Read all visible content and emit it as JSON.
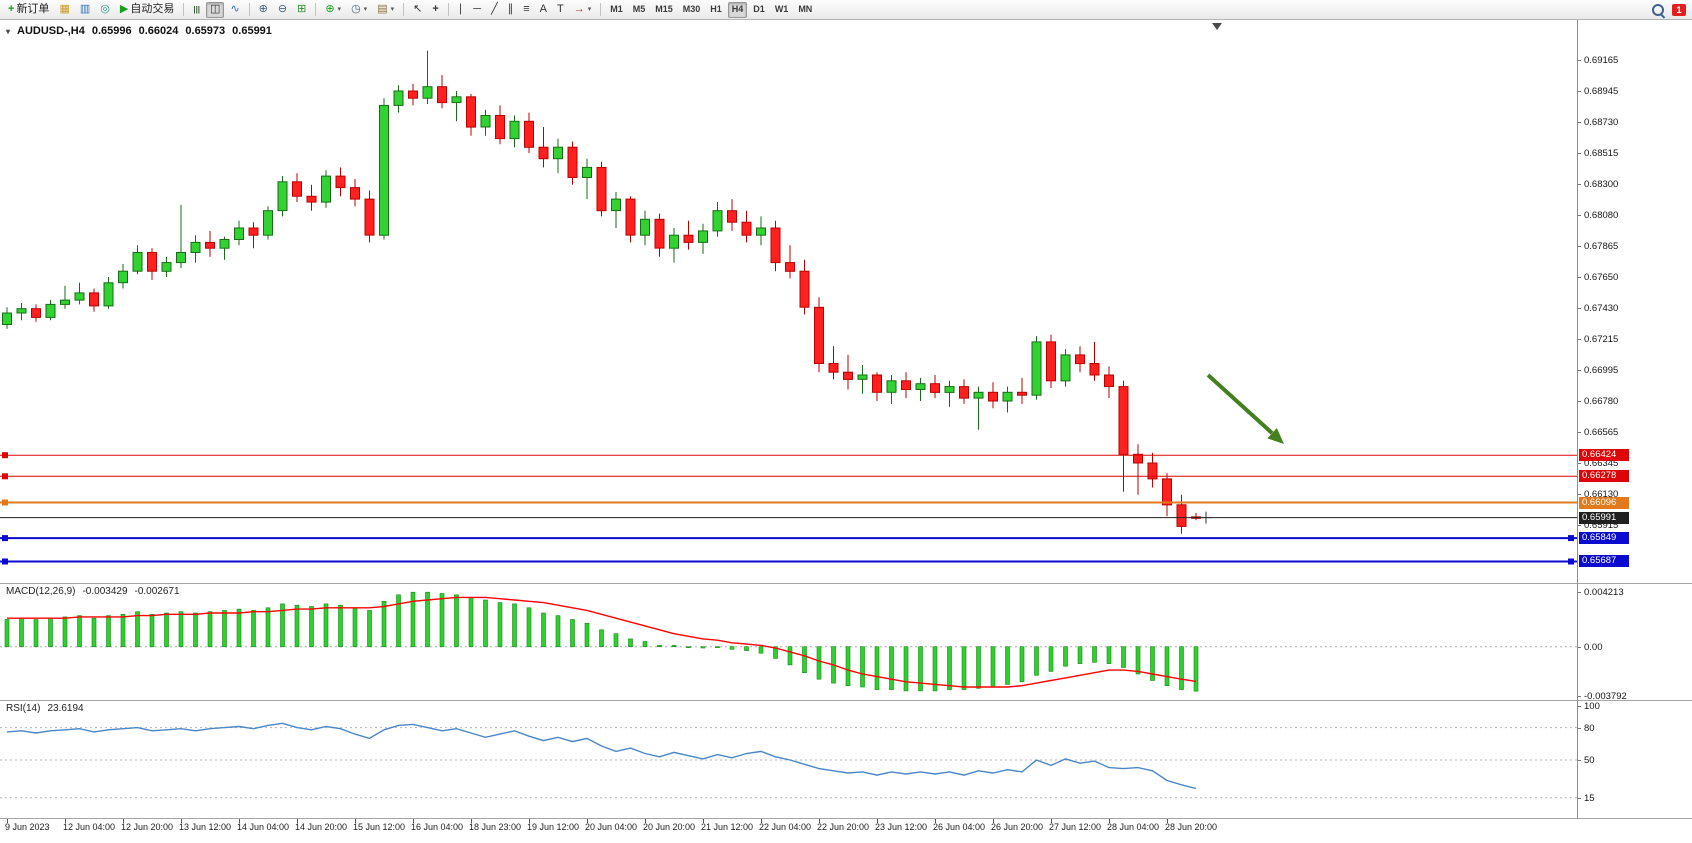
{
  "toolbar": {
    "notification_count": "1",
    "groups": [
      {
        "items": [
          {
            "name": "new-order-button",
            "icon": "new-order-icon",
            "glyph": "+",
            "glyph_color": "#17a017",
            "bold": true,
            "label": "新订单"
          },
          {
            "name": "market-watch-button",
            "icon": "market-watch-icon",
            "glyph": "▦",
            "glyph_color": "#c89a1e"
          },
          {
            "name": "data-window-button",
            "icon": "data-window-icon",
            "glyph": "▥",
            "glyph_color": "#2e6fba"
          },
          {
            "name": "navigator-button",
            "icon": "navigator-icon",
            "glyph": "◎",
            "glyph_color": "#2a9a8a"
          },
          {
            "name": "auto-trading-button",
            "icon": "play-icon",
            "glyph": "▶",
            "glyph_color": "#18a018",
            "label": "自动交易"
          }
        ]
      },
      {
        "items": [
          {
            "name": "bar-chart-button",
            "icon": "bar-chart-icon",
            "glyph": "|||",
            "glyph_color": "#3a5a3a",
            "narrow": true
          },
          {
            "name": "candlestick-chart-button",
            "icon": "candlestick-chart-icon",
            "glyph": "◫",
            "glyph_color": "#333333",
            "active": true
          },
          {
            "name": "line-chart-button",
            "icon": "line-chart-icon",
            "glyph": "∿",
            "glyph_color": "#2e6fba"
          }
        ]
      },
      {
        "items": [
          {
            "name": "zoom-in-button",
            "icon": "zoom-in-icon",
            "glyph": "⊕",
            "glyph_color": "#44617e"
          },
          {
            "name": "zoom-out-button",
            "icon": "zoom-out-icon",
            "glyph": "⊖",
            "glyph_color": "#44617e"
          },
          {
            "name": "tile-windows-button",
            "icon": "tile-windows-icon",
            "glyph": "⊞",
            "glyph_color": "#2f8f2f"
          }
        ]
      },
      {
        "items": [
          {
            "name": "indicators-button",
            "icon": "indicators-plus-icon",
            "glyph": "⊕",
            "glyph_color": "#17a017",
            "caret": true
          },
          {
            "name": "periods-button",
            "icon": "clock-icon",
            "glyph": "◷",
            "glyph_color": "#44617e",
            "caret": true
          },
          {
            "name": "templates-button",
            "icon": "template-icon",
            "glyph": "▤",
            "glyph_color": "#8a6d3b",
            "caret": true
          }
        ]
      },
      {
        "items": [
          {
            "name": "cursor-button",
            "icon": "cursor-icon",
            "glyph": "↖",
            "glyph_color": "#333333"
          },
          {
            "name": "crosshair-button",
            "icon": "crosshair-icon",
            "glyph": "+",
            "glyph_color": "#333333",
            "bold": true
          }
        ]
      },
      {
        "items": [
          {
            "name": "vertical-line-button",
            "icon": "vertical-line-icon",
            "glyph": "∣",
            "glyph_color": "#333333"
          },
          {
            "name": "horizontal-line-button",
            "icon": "horizontal-line-icon",
            "glyph": "─",
            "glyph_color": "#333333"
          },
          {
            "name": "trendline-button",
            "icon": "trendline-icon",
            "glyph": "╱",
            "glyph_color": "#333333"
          },
          {
            "name": "channel-button",
            "icon": "channel-icon",
            "glyph": "∥",
            "glyph_color": "#333333"
          },
          {
            "name": "fibonacci-button",
            "icon": "fibonacci-icon",
            "glyph": "≡",
            "glyph_color": "#333333"
          },
          {
            "name": "text-button",
            "icon": "text-icon",
            "glyph": "A",
            "glyph_color": "#333333"
          },
          {
            "name": "label-button",
            "icon": "label-icon",
            "glyph": "T",
            "glyph_color": "#333333"
          },
          {
            "name": "arrows-button",
            "icon": "arrow-object-icon",
            "glyph": "→",
            "glyph_color": "#b03030",
            "caret": true
          }
        ]
      },
      {
        "items": [
          {
            "name": "timeframe-m1-button",
            "label": "M1",
            "tf": true
          },
          {
            "name": "timeframe-m5-button",
            "label": "M5",
            "tf": true
          },
          {
            "name": "timeframe-m15-button",
            "label": "M15",
            "tf": true
          },
          {
            "name": "timeframe-m30-button",
            "label": "M30",
            "tf": true
          },
          {
            "name": "timeframe-h1-button",
            "label": "H1",
            "tf": true
          },
          {
            "name": "timeframe-h4-button",
            "label": "H4",
            "tf": true,
            "active": true
          },
          {
            "name": "timeframe-d1-button",
            "label": "D1",
            "tf": true
          },
          {
            "name": "timeframe-w1-button",
            "label": "W1",
            "tf": true
          },
          {
            "name": "timeframe-mn-button",
            "label": "MN",
            "tf": true
          }
        ]
      }
    ]
  },
  "chart_data": {
    "type": "candlestick",
    "symbol_title": "AUDUSD-,H4",
    "timeframe": "H4",
    "quote": {
      "open": "0.65996",
      "high": "0.66024",
      "low": "0.65973",
      "close": "0.65991"
    },
    "up_color": "#31d231",
    "down_color": "#ff2020",
    "arrow_color": "#44801f",
    "price_axis_top_value": 0.69165,
    "price_axis_step": 0.00215,
    "price_axis": [
      "0.69165",
      "0.68945",
      "0.68730",
      "0.68515",
      "0.68300",
      "0.68080",
      "0.67865",
      "0.67650",
      "0.67430",
      "0.67215",
      "0.66995",
      "0.66780",
      "0.66565",
      "0.66345",
      "0.66130",
      "0.65915"
    ],
    "lines": [
      {
        "label": "0.66424",
        "price": 0.66424,
        "color": "#dd0505",
        "width": 1,
        "handles": [
          "left"
        ]
      },
      {
        "label": "0.66278",
        "price": 0.66278,
        "color": "#dd0505",
        "width": 1,
        "handles": [
          "left"
        ]
      },
      {
        "label": "0.66096",
        "price": 0.66096,
        "color": "#e2791b",
        "width": 2,
        "handles": [
          "left"
        ]
      },
      {
        "label": "0.65991",
        "price": 0.65991,
        "color": "#202020",
        "width": 1,
        "handles": [],
        "role": "current-price"
      },
      {
        "label": "0.65849",
        "price": 0.65849,
        "color": "#0a0ad0",
        "width": 2,
        "handles": [
          "left",
          "right"
        ]
      },
      {
        "label": "0.65687",
        "price": 0.65687,
        "color": "#0a0ad0",
        "width": 2,
        "handles": [
          "left",
          "right"
        ]
      }
    ],
    "x_labels": [
      "9 Jun 2023",
      "12 Jun 04:00",
      "12 Jun 20:00",
      "13 Jun 12:00",
      "14 Jun 04:00",
      "14 Jun 20:00",
      "15 Jun 12:00",
      "16 Jun 04:00",
      "18 Jun 23:00",
      "19 Jun 12:00",
      "20 Jun 04:00",
      "20 Jun 20:00",
      "21 Jun 12:00",
      "22 Jun 04:00",
      "22 Jun 20:00",
      "23 Jun 12:00",
      "26 Jun 04:00",
      "26 Jun 20:00",
      "27 Jun 12:00",
      "28 Jun 04:00",
      "28 Jun 20:00"
    ],
    "candles": [
      [
        0.6733,
        0.6745,
        0.673,
        0.6741
      ],
      [
        0.6741,
        0.6748,
        0.6736,
        0.6744
      ],
      [
        0.6744,
        0.6747,
        0.6735,
        0.6738
      ],
      [
        0.6738,
        0.675,
        0.6736,
        0.6747
      ],
      [
        0.6747,
        0.676,
        0.6744,
        0.675
      ],
      [
        0.675,
        0.6762,
        0.6747,
        0.6755
      ],
      [
        0.6755,
        0.6758,
        0.6742,
        0.6746
      ],
      [
        0.6746,
        0.6766,
        0.6744,
        0.6762
      ],
      [
        0.6762,
        0.6775,
        0.6758,
        0.677
      ],
      [
        0.677,
        0.6788,
        0.6768,
        0.6783
      ],
      [
        0.6783,
        0.6786,
        0.6764,
        0.677
      ],
      [
        0.677,
        0.678,
        0.6766,
        0.6776
      ],
      [
        0.6776,
        0.6816,
        0.6772,
        0.6783
      ],
      [
        0.6783,
        0.6795,
        0.6776,
        0.679
      ],
      [
        0.679,
        0.6798,
        0.678,
        0.6786
      ],
      [
        0.6786,
        0.6794,
        0.6778,
        0.6792
      ],
      [
        0.6792,
        0.6805,
        0.6788,
        0.68
      ],
      [
        0.68,
        0.6804,
        0.6786,
        0.6795
      ],
      [
        0.6795,
        0.6815,
        0.6792,
        0.6812
      ],
      [
        0.6812,
        0.6836,
        0.6808,
        0.6832
      ],
      [
        0.6832,
        0.6838,
        0.6818,
        0.6822
      ],
      [
        0.6822,
        0.683,
        0.6812,
        0.6818
      ],
      [
        0.6818,
        0.684,
        0.6814,
        0.6836
      ],
      [
        0.6836,
        0.6842,
        0.6822,
        0.6828
      ],
      [
        0.6828,
        0.6834,
        0.6815,
        0.682
      ],
      [
        0.682,
        0.6826,
        0.679,
        0.6795
      ],
      [
        0.6795,
        0.689,
        0.6792,
        0.6885
      ],
      [
        0.6885,
        0.6899,
        0.688,
        0.6895
      ],
      [
        0.6895,
        0.69,
        0.6885,
        0.689
      ],
      [
        0.689,
        0.6923,
        0.6886,
        0.6898
      ],
      [
        0.6898,
        0.6906,
        0.6883,
        0.6887
      ],
      [
        0.6887,
        0.6895,
        0.6874,
        0.6891
      ],
      [
        0.6891,
        0.6893,
        0.6864,
        0.687
      ],
      [
        0.687,
        0.6882,
        0.6864,
        0.6878
      ],
      [
        0.6878,
        0.6885,
        0.6858,
        0.6862
      ],
      [
        0.6862,
        0.6878,
        0.6856,
        0.6874
      ],
      [
        0.6874,
        0.688,
        0.6852,
        0.6856
      ],
      [
        0.6856,
        0.687,
        0.6842,
        0.6848
      ],
      [
        0.6848,
        0.6862,
        0.6838,
        0.6856
      ],
      [
        0.6856,
        0.686,
        0.683,
        0.6835
      ],
      [
        0.6835,
        0.6848,
        0.682,
        0.6842
      ],
      [
        0.6842,
        0.6846,
        0.6808,
        0.6812
      ],
      [
        0.6812,
        0.6825,
        0.68,
        0.682
      ],
      [
        0.682,
        0.6822,
        0.679,
        0.6795
      ],
      [
        0.6795,
        0.6812,
        0.6788,
        0.6806
      ],
      [
        0.6806,
        0.681,
        0.678,
        0.6786
      ],
      [
        0.6786,
        0.68,
        0.6776,
        0.6795
      ],
      [
        0.6795,
        0.6805,
        0.6785,
        0.679
      ],
      [
        0.679,
        0.6803,
        0.6782,
        0.6798
      ],
      [
        0.6798,
        0.6818,
        0.6794,
        0.6812
      ],
      [
        0.6812,
        0.682,
        0.6798,
        0.6804
      ],
      [
        0.6804,
        0.6812,
        0.679,
        0.6795
      ],
      [
        0.6795,
        0.6808,
        0.6788,
        0.68
      ],
      [
        0.68,
        0.6805,
        0.677,
        0.6776
      ],
      [
        0.6776,
        0.6788,
        0.6765,
        0.677
      ],
      [
        0.677,
        0.6778,
        0.674,
        0.6745
      ],
      [
        0.6745,
        0.6752,
        0.67,
        0.6706
      ],
      [
        0.6706,
        0.6718,
        0.6695,
        0.67
      ],
      [
        0.67,
        0.6712,
        0.6688,
        0.6695
      ],
      [
        0.6695,
        0.6705,
        0.6685,
        0.6698
      ],
      [
        0.6698,
        0.67,
        0.668,
        0.6686
      ],
      [
        0.6686,
        0.6698,
        0.6678,
        0.6694
      ],
      [
        0.6694,
        0.67,
        0.6682,
        0.6688
      ],
      [
        0.6688,
        0.6696,
        0.668,
        0.6692
      ],
      [
        0.6692,
        0.6698,
        0.6682,
        0.6686
      ],
      [
        0.6686,
        0.6694,
        0.6676,
        0.669
      ],
      [
        0.669,
        0.6695,
        0.6678,
        0.6682
      ],
      [
        0.6682,
        0.669,
        0.666,
        0.6686
      ],
      [
        0.6686,
        0.6693,
        0.6675,
        0.668
      ],
      [
        0.668,
        0.669,
        0.6672,
        0.6686
      ],
      [
        0.6686,
        0.6696,
        0.6678,
        0.6684
      ],
      [
        0.6684,
        0.6725,
        0.6681,
        0.6721
      ],
      [
        0.6721,
        0.6726,
        0.6689,
        0.6694
      ],
      [
        0.6694,
        0.6716,
        0.669,
        0.6712
      ],
      [
        0.6712,
        0.6718,
        0.67,
        0.6706
      ],
      [
        0.6706,
        0.6721,
        0.6694,
        0.6698
      ],
      [
        0.6698,
        0.6704,
        0.6682,
        0.669
      ],
      [
        0.669,
        0.6694,
        0.6617,
        0.6643
      ],
      [
        0.6643,
        0.665,
        0.6615,
        0.6637
      ],
      [
        0.6637,
        0.6644,
        0.662,
        0.6626
      ],
      [
        0.6626,
        0.663,
        0.66,
        0.6608
      ],
      [
        0.6608,
        0.6615,
        0.6588,
        0.6593
      ],
      [
        0.65996,
        0.66024,
        0.65973,
        0.65991
      ]
    ],
    "macd": {
      "type": "histogram+line",
      "label": "MACD(12,26,9)",
      "value_main": "-0.003429",
      "value_signal": "-0.002671",
      "axis_labels": [
        "0.004213",
        "0.00",
        "-0.003792"
      ],
      "scale_max": 0.004213,
      "scale_min": -0.003792,
      "histogram_color": "#2fcf2f",
      "signal_color": "#ff0000",
      "histogram": [
        0.0021,
        0.0022,
        0.0021,
        0.0022,
        0.0023,
        0.0024,
        0.0022,
        0.0024,
        0.0025,
        0.0027,
        0.0025,
        0.0026,
        0.0027,
        0.0026,
        0.0027,
        0.0028,
        0.0029,
        0.0028,
        0.003,
        0.0033,
        0.0032,
        0.0031,
        0.0033,
        0.0032,
        0.003,
        0.0028,
        0.0035,
        0.004,
        0.0042,
        0.0042,
        0.0041,
        0.004,
        0.0038,
        0.0036,
        0.0034,
        0.0033,
        0.003,
        0.0026,
        0.0024,
        0.0021,
        0.0018,
        0.0013,
        0.001,
        0.0006,
        0.0004,
        0.0001,
        0.0001,
        0.0,
        -0.0001,
        0.0,
        -0.0002,
        -0.0003,
        -0.0005,
        -0.0009,
        -0.0014,
        -0.002,
        -0.0025,
        -0.0028,
        -0.003,
        -0.0031,
        -0.0033,
        -0.0033,
        -0.0034,
        -0.0034,
        -0.0034,
        -0.0033,
        -0.0033,
        -0.0032,
        -0.0031,
        -0.0029,
        -0.0027,
        -0.0022,
        -0.0019,
        -0.0015,
        -0.0013,
        -0.0012,
        -0.0013,
        -0.0016,
        -0.0021,
        -0.0026,
        -0.003,
        -0.0033,
        -0.003429
      ],
      "signal": [
        0.0022,
        0.0022,
        0.0022,
        0.0022,
        0.0022,
        0.0023,
        0.0023,
        0.0023,
        0.0023,
        0.0024,
        0.0024,
        0.0025,
        0.0025,
        0.0025,
        0.0026,
        0.0026,
        0.0026,
        0.0027,
        0.0027,
        0.0028,
        0.0029,
        0.0029,
        0.003,
        0.003,
        0.003,
        0.003,
        0.0031,
        0.0033,
        0.0035,
        0.0036,
        0.0037,
        0.0038,
        0.0038,
        0.0038,
        0.0037,
        0.0036,
        0.0035,
        0.0034,
        0.0032,
        0.003,
        0.0028,
        0.0025,
        0.0022,
        0.0019,
        0.0016,
        0.0013,
        0.001,
        0.0008,
        0.0006,
        0.0005,
        0.0003,
        0.0002,
        0.0001,
        -0.0001,
        -0.0004,
        -0.0007,
        -0.0011,
        -0.0014,
        -0.0018,
        -0.0021,
        -0.0023,
        -0.0025,
        -0.0027,
        -0.0028,
        -0.0029,
        -0.003,
        -0.0031,
        -0.0031,
        -0.0031,
        -0.0031,
        -0.003,
        -0.0028,
        -0.0026,
        -0.0024,
        -0.0022,
        -0.002,
        -0.0018,
        -0.0018,
        -0.0019,
        -0.0021,
        -0.0023,
        -0.0025,
        -0.002671
      ]
    },
    "rsi": {
      "type": "line",
      "label": "RSI(14)",
      "value": "23.6194",
      "axis_labels": [
        "100",
        "80",
        "50",
        "15"
      ],
      "levels": [
        80,
        50,
        15
      ],
      "color": "#4a86c8",
      "values": [
        76,
        77,
        75,
        77,
        78,
        79,
        76,
        78,
        79,
        80,
        77,
        78,
        79,
        77,
        79,
        80,
        81,
        79,
        82,
        84,
        80,
        78,
        81,
        79,
        74,
        70,
        78,
        82,
        83,
        80,
        77,
        79,
        75,
        71,
        74,
        77,
        72,
        68,
        71,
        67,
        70,
        63,
        58,
        61,
        56,
        53,
        57,
        54,
        51,
        55,
        52,
        56,
        58,
        53,
        50,
        46,
        42,
        40,
        38,
        39,
        36,
        39,
        37,
        39,
        37,
        39,
        36,
        40,
        38,
        41,
        39,
        50,
        45,
        51,
        47,
        49,
        43,
        42,
        43,
        40,
        31,
        27,
        23.6194
      ]
    }
  }
}
